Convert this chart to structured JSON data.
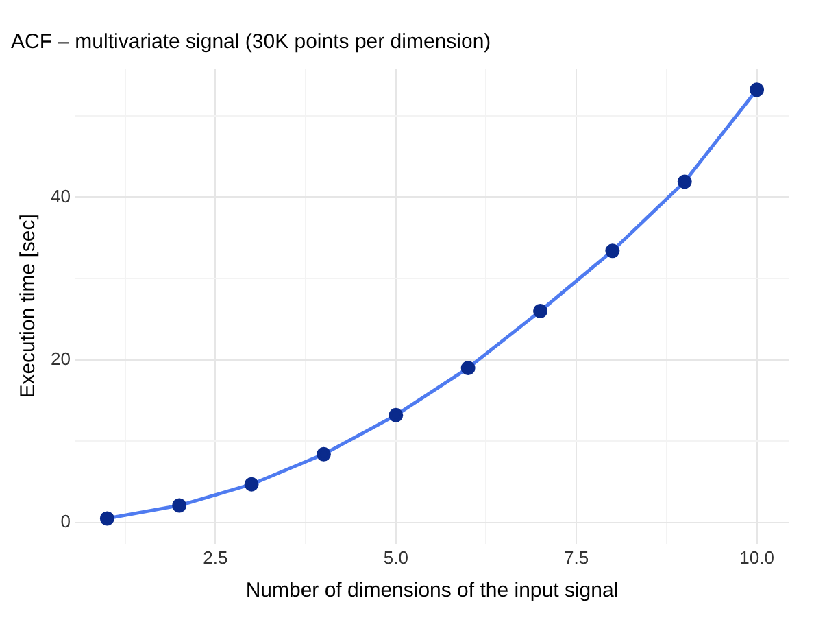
{
  "chart_data": {
    "type": "line",
    "title": "ACF – multivariate signal (30K points per dimension)",
    "xlabel": "Number of dimensions of the input signal",
    "ylabel": "Execution time [sec]",
    "x": [
      1,
      2,
      3,
      4,
      5,
      6,
      7,
      8,
      9,
      10
    ],
    "series": [
      {
        "color": "#4f7bf0",
        "colors": [
          "#0a2a8c",
          "#0a2a8c",
          "#0a2a8c",
          "#0a2a8c",
          "#0a2a8c",
          "#0a2a8c",
          "#0a2a8c",
          "#0a2a8c",
          "#0a2a8c",
          "#0a2a8c"
        ],
        "values": [
          0.5,
          2.1,
          4.7,
          8.4,
          13.2,
          19.0,
          26.0,
          33.4,
          41.9,
          53.2
        ]
      }
    ],
    "xlim": [
      0.55,
      10.45
    ],
    "xticks": [
      {
        "value": 1.25,
        "label": null
      },
      {
        "value": 2.5,
        "label": "2.5"
      },
      {
        "value": 3.75,
        "label": null
      },
      {
        "value": 5,
        "label": "5.0"
      },
      {
        "value": 6.25,
        "label": null
      },
      {
        "value": 7.5,
        "label": "7.5"
      },
      {
        "value": 8.75,
        "label": null
      },
      {
        "value": 10,
        "label": "10.0"
      }
    ],
    "ylim": [
      -2.6,
      55.8
    ],
    "yticks": [
      0,
      {
        "value": 10,
        "label": null
      },
      20,
      {
        "value": 30,
        "label": null
      },
      40,
      {
        "value": 50,
        "label": null
      }
    ],
    "grid": true,
    "marker": "circle",
    "line_style": "solid",
    "legend": false
  }
}
